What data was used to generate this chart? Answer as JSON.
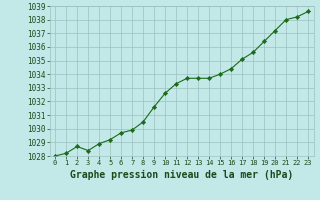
{
  "x": [
    0,
    1,
    2,
    3,
    4,
    5,
    6,
    7,
    8,
    9,
    10,
    11,
    12,
    13,
    14,
    15,
    16,
    17,
    18,
    19,
    20,
    21,
    22,
    23
  ],
  "y": [
    1028.0,
    1028.2,
    1028.7,
    1028.4,
    1028.9,
    1029.2,
    1029.7,
    1029.9,
    1030.5,
    1031.6,
    1032.6,
    1033.3,
    1033.7,
    1033.7,
    1033.7,
    1034.0,
    1034.4,
    1035.1,
    1035.6,
    1036.4,
    1037.2,
    1038.0,
    1038.2,
    1038.6
  ],
  "ylim": [
    1028,
    1039
  ],
  "xlim_min": -0.5,
  "xlim_max": 23.5,
  "yticks": [
    1028,
    1029,
    1030,
    1031,
    1032,
    1033,
    1034,
    1035,
    1036,
    1037,
    1038,
    1039
  ],
  "xticks": [
    0,
    1,
    2,
    3,
    4,
    5,
    6,
    7,
    8,
    9,
    10,
    11,
    12,
    13,
    14,
    15,
    16,
    17,
    18,
    19,
    20,
    21,
    22,
    23
  ],
  "xlabel": "Graphe pression niveau de la mer (hPa)",
  "line_color": "#1a6b1a",
  "marker": "D",
  "marker_size": 2.2,
  "bg_color": "#c2e8e8",
  "grid_color": "#9dbfbf",
  "tick_label_color": "#1a4a1a",
  "xlabel_color": "#1a4a1a",
  "ytick_fontsize": 5.5,
  "xtick_fontsize": 5.0,
  "xlabel_fontsize": 7.0
}
